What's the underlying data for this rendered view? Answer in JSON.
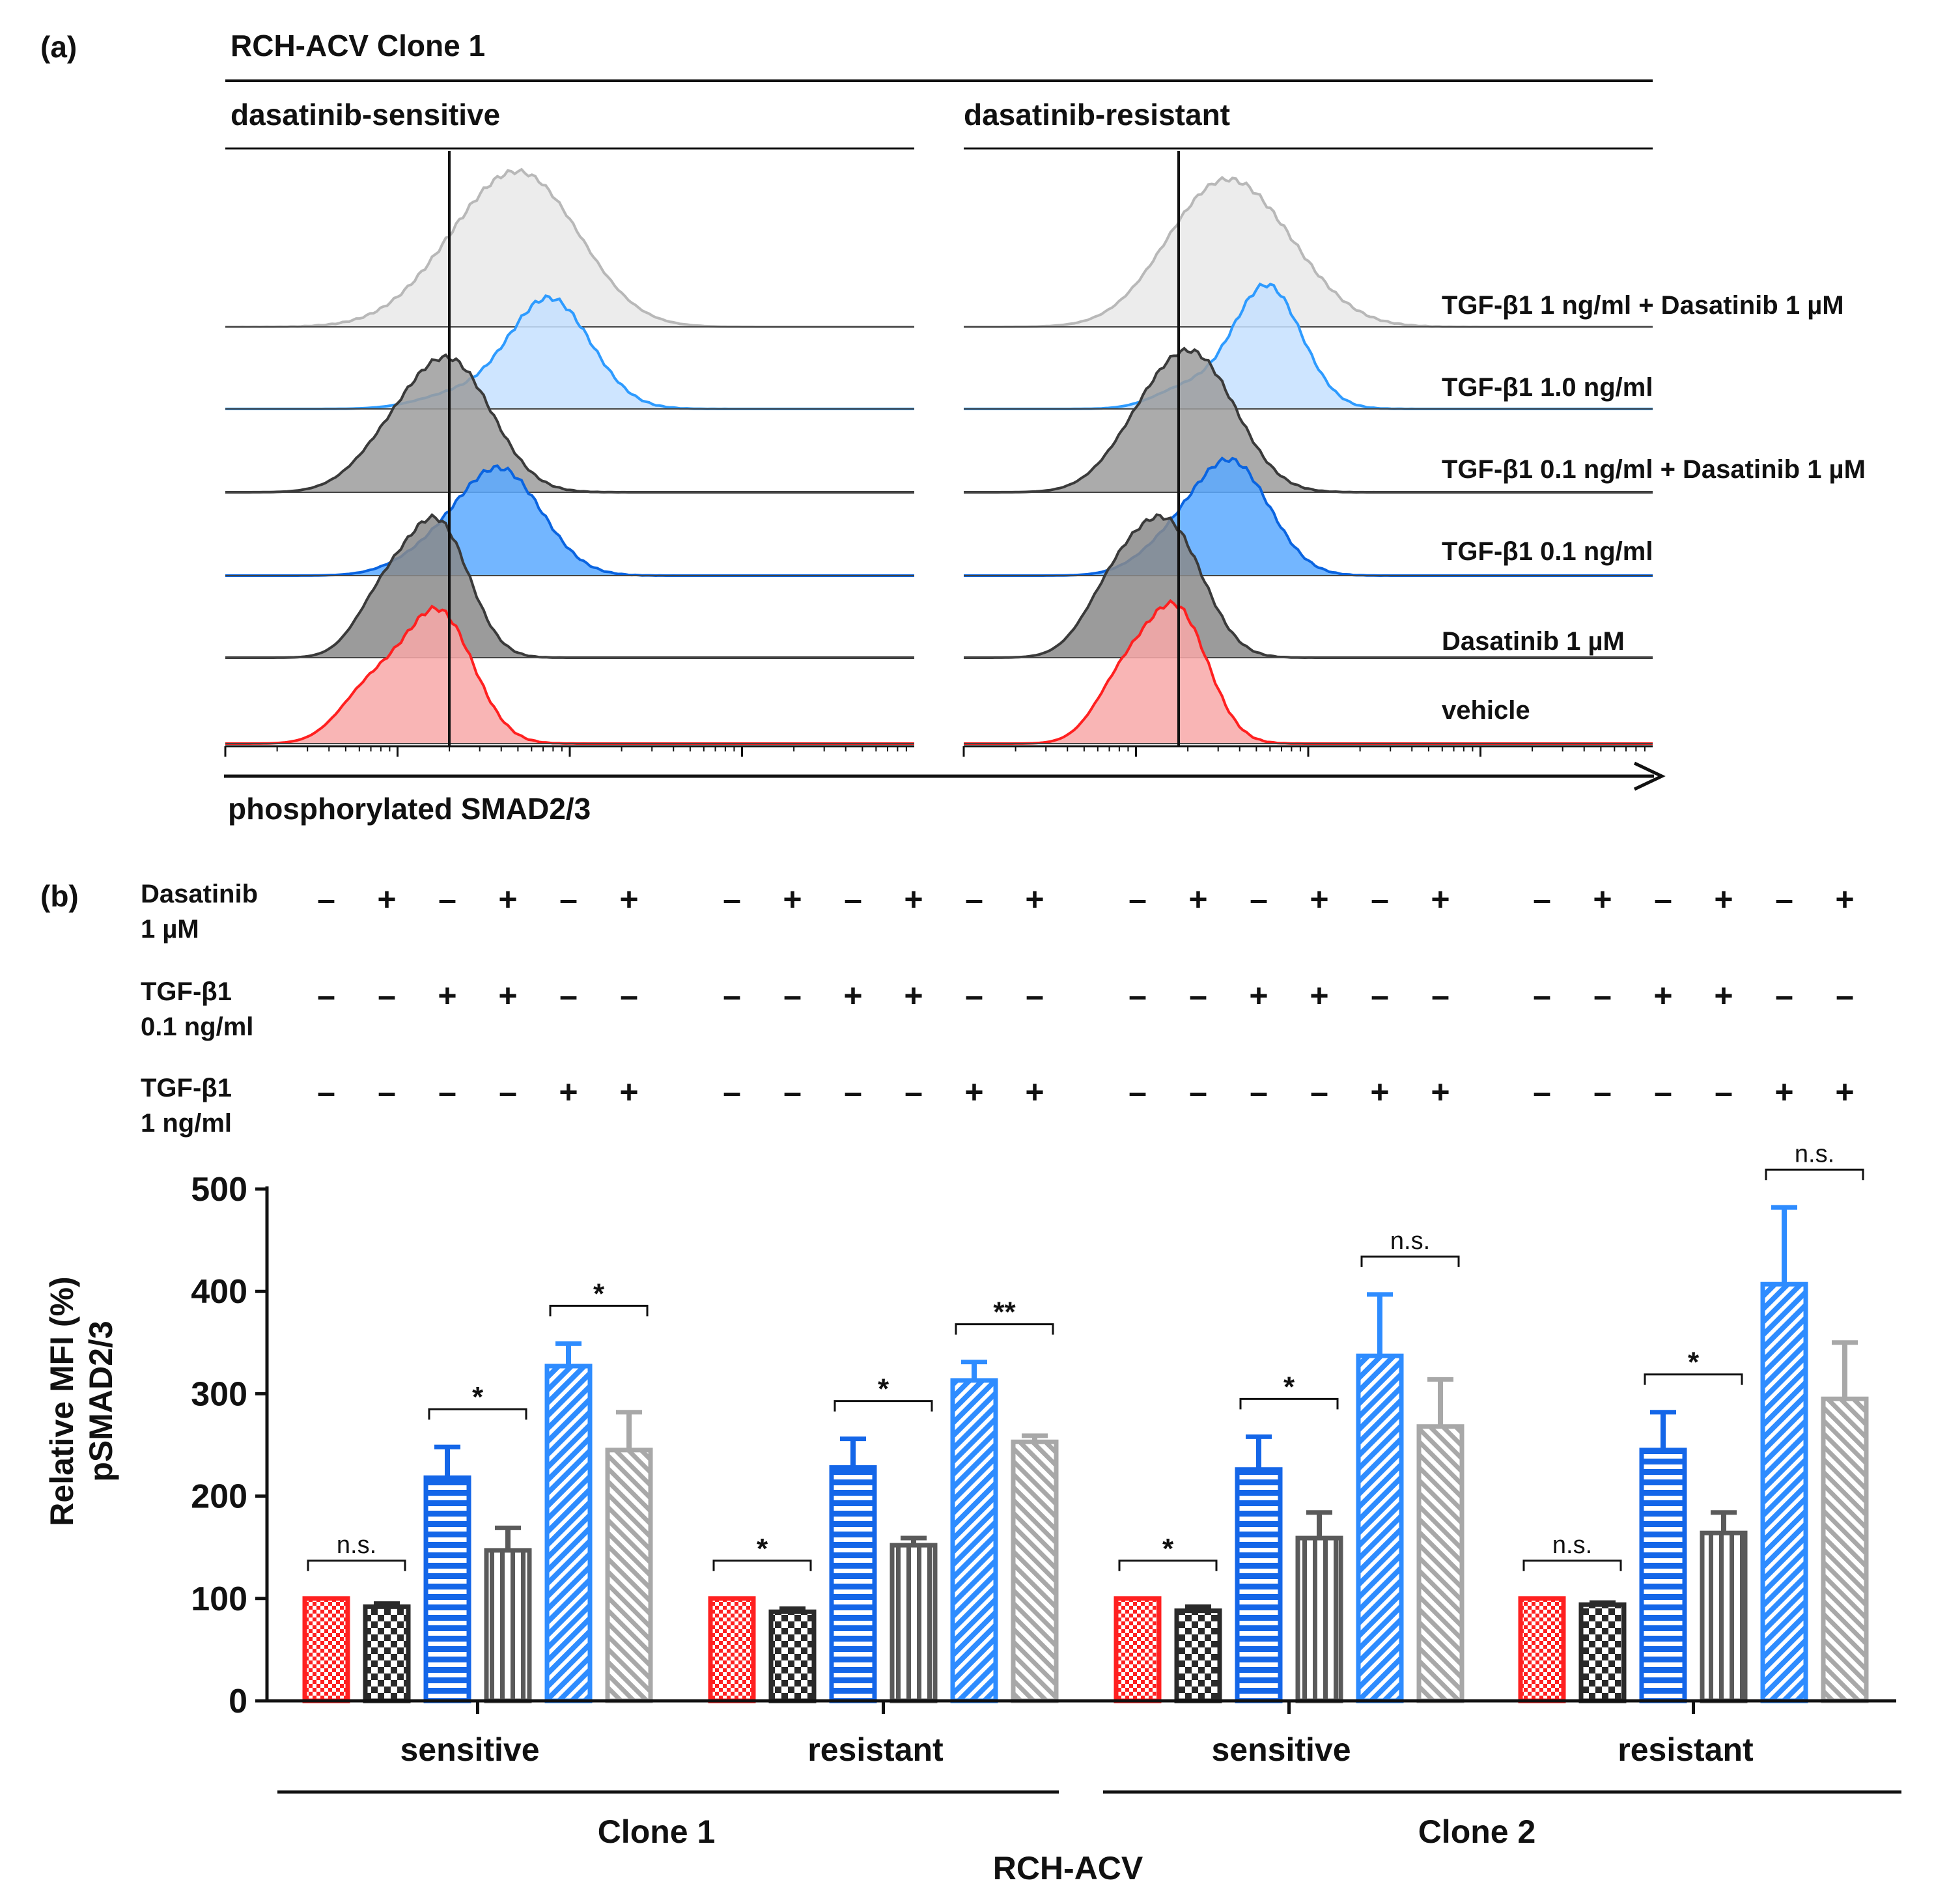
{
  "panel_a": {
    "label": "(a)",
    "title": "RCH-ACV Clone 1",
    "left_header": "dasatinib-sensitive",
    "right_header": "dasatinib-resistant",
    "x_axis_label": "phosphorylated SMAD2/3",
    "conditions": [
      "TGF-β1 1 ng/ml + Dasatinib 1 µM",
      "TGF-β1 1.0 ng/ml",
      "TGF-β1 0.1 ng/ml + Dasatinib 1 µM",
      "TGF-β1 0.1 ng/ml",
      "Dasatinib 1 µM",
      "vehicle"
    ],
    "colors": {
      "light_gray": "#b8b8b8",
      "light_blue": "#2e9bff",
      "dark_gray": "#3a3a3a",
      "blue": "#0a64e0",
      "red": "#ff2020"
    }
  },
  "panel_b": {
    "label": "(b)",
    "treatment_rows": [
      {
        "label_line1": "Dasatinib",
        "label_line2": "1 µM",
        "signs": [
          "–",
          "+",
          "–",
          "+",
          "–",
          "+",
          "–",
          "+",
          "–",
          "+",
          "–",
          "+",
          "–",
          "+",
          "–",
          "+",
          "–",
          "+",
          "–",
          "+",
          "–",
          "+",
          "–",
          "+"
        ]
      },
      {
        "label_line1": "TGF-β1",
        "label_line2": "0.1 ng/ml",
        "signs": [
          "–",
          "–",
          "+",
          "+",
          "–",
          "–",
          "–",
          "–",
          "+",
          "+",
          "–",
          "–",
          "–",
          "–",
          "+",
          "+",
          "–",
          "–",
          "–",
          "–",
          "+",
          "+",
          "–",
          "–"
        ]
      },
      {
        "label_line1": "TGF-β1",
        "label_line2": "1 ng/ml",
        "signs": [
          "–",
          "–",
          "–",
          "–",
          "+",
          "+",
          "–",
          "–",
          "–",
          "–",
          "+",
          "+",
          "–",
          "–",
          "–",
          "–",
          "+",
          "+",
          "–",
          "–",
          "–",
          "–",
          "+",
          "+"
        ]
      }
    ],
    "footer": {
      "clone1": "Clone 1",
      "clone2": "Clone 2",
      "cell_line": "RCH-ACV"
    }
  },
  "chart_data": {
    "type": "bar",
    "title": "",
    "xlabel": "RCH-ACV",
    "ylabel_line1": "Relative MFI (%)",
    "ylabel_line2": "pSMAD2/3",
    "ylim": [
      0,
      500
    ],
    "yticks": [
      "0",
      "100",
      "200",
      "300",
      "400",
      "500"
    ],
    "groups": [
      {
        "name": "sensitive",
        "clone": "Clone 1",
        "bars": [
          {
            "value": 100,
            "error": 0,
            "pattern": "red-check"
          },
          {
            "value": 92,
            "error": 3,
            "pattern": "black-check"
          },
          {
            "value": 218,
            "error": 30,
            "pattern": "blue-hlines"
          },
          {
            "value": 147,
            "error": 22,
            "pattern": "gray-vlines"
          },
          {
            "value": 327,
            "error": 22,
            "pattern": "blue-diag"
          },
          {
            "value": 245,
            "error": 37,
            "pattern": "lightgray-diag"
          }
        ],
        "sig": [
          {
            "from": 0,
            "to": 1,
            "label": "n.s."
          },
          {
            "from": 2,
            "to": 3,
            "label": "*"
          },
          {
            "from": 4,
            "to": 5,
            "label": "*"
          }
        ]
      },
      {
        "name": "resistant",
        "clone": "Clone 1",
        "bars": [
          {
            "value": 100,
            "error": 0,
            "pattern": "red-check"
          },
          {
            "value": 87,
            "error": 3,
            "pattern": "black-check"
          },
          {
            "value": 228,
            "error": 28,
            "pattern": "blue-hlines"
          },
          {
            "value": 152,
            "error": 7,
            "pattern": "gray-vlines"
          },
          {
            "value": 313,
            "error": 18,
            "pattern": "blue-diag"
          },
          {
            "value": 253,
            "error": 6,
            "pattern": "lightgray-diag"
          }
        ],
        "sig": [
          {
            "from": 0,
            "to": 1,
            "label": "*"
          },
          {
            "from": 2,
            "to": 3,
            "label": "*"
          },
          {
            "from": 4,
            "to": 5,
            "label": "**"
          }
        ]
      },
      {
        "name": "sensitive",
        "clone": "Clone 2",
        "bars": [
          {
            "value": 100,
            "error": 0,
            "pattern": "red-check"
          },
          {
            "value": 88,
            "error": 4,
            "pattern": "black-check"
          },
          {
            "value": 226,
            "error": 32,
            "pattern": "blue-hlines"
          },
          {
            "value": 159,
            "error": 25,
            "pattern": "gray-vlines"
          },
          {
            "value": 337,
            "error": 60,
            "pattern": "blue-diag"
          },
          {
            "value": 268,
            "error": 46,
            "pattern": "lightgray-diag"
          }
        ],
        "sig": [
          {
            "from": 0,
            "to": 1,
            "label": "*"
          },
          {
            "from": 2,
            "to": 3,
            "label": "*"
          },
          {
            "from": 4,
            "to": 5,
            "label": "n.s."
          }
        ]
      },
      {
        "name": "resistant",
        "clone": "Clone 2",
        "bars": [
          {
            "value": 100,
            "error": 0,
            "pattern": "red-check"
          },
          {
            "value": 94,
            "error": 2,
            "pattern": "black-check"
          },
          {
            "value": 245,
            "error": 37,
            "pattern": "blue-hlines"
          },
          {
            "value": 164,
            "error": 20,
            "pattern": "gray-vlines"
          },
          {
            "value": 407,
            "error": 75,
            "pattern": "blue-diag"
          },
          {
            "value": 295,
            "error": 55,
            "pattern": "lightgray-diag"
          }
        ],
        "sig": [
          {
            "from": 0,
            "to": 1,
            "label": "n.s."
          },
          {
            "from": 2,
            "to": 3,
            "label": "*"
          },
          {
            "from": 4,
            "to": 5,
            "label": "n.s."
          }
        ]
      }
    ]
  }
}
